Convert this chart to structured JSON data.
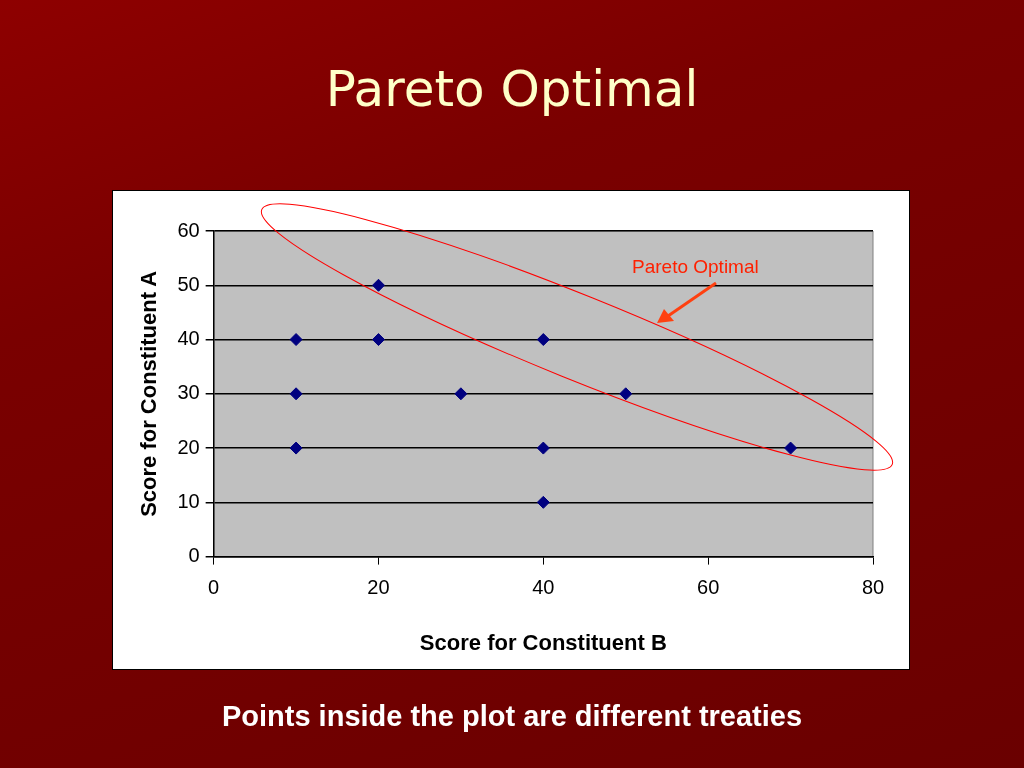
{
  "chart_data": {
    "type": "scatter",
    "title": "Pareto Optimal",
    "xlabel": "Score for Constituent B",
    "ylabel": "Score for Constituent A",
    "x": [
      10,
      10,
      10,
      20,
      20,
      30,
      40,
      40,
      40,
      50,
      70
    ],
    "series": [
      {
        "color": "#000080",
        "values": [
          40,
          30,
          20,
          50,
          40,
          30,
          40,
          20,
          10,
          30,
          20
        ]
      }
    ],
    "xlim": [
      0,
      80
    ],
    "xticks": [
      0,
      20,
      40,
      60,
      80
    ],
    "ylim": [
      0,
      60
    ],
    "yticks": [
      0,
      10,
      20,
      30,
      40,
      50,
      60
    ],
    "grid": "y",
    "legend": false,
    "marker": "diamond",
    "annotations": [
      "Pareto Optimal",
      "Points inside the plot are different treaties"
    ]
  }
}
